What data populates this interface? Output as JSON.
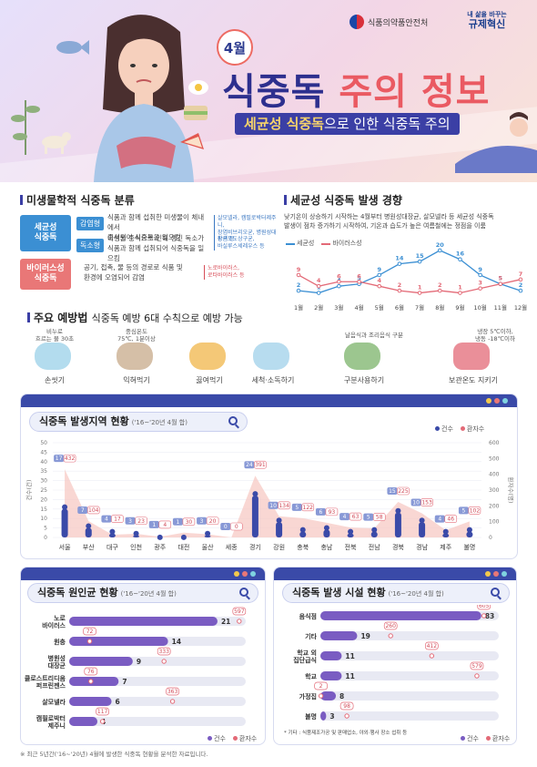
{
  "header": {
    "ministry": "식품의약품안전처",
    "slogan_small": "내 삶을 바꾸는",
    "slogan_big": "규제혁신",
    "month": "4월",
    "title_part1": "식중독",
    "title_part2": "주의 정보",
    "subtitle_hl": "세균성 식중독",
    "subtitle_rest": "으로 인한 식중독 주의"
  },
  "classification": {
    "title": "미생물학적 식중독 분류",
    "bacterial": {
      "label": "세균성\n식중독",
      "infect_tag": "감염형",
      "infect_text": "식품과 함께 섭취한 미생물이 체내에서\n증식되어 식중독을 일으킴",
      "infect_examples": "살모넬라, 캠필로박터제주니,\n장염비브리오균, 병원성대장균 등",
      "toxin_tag": "독소형",
      "toxin_text": "미생물 증식으로 인해 생긴 독소가\n식품과 함께 섭취되어 식중독을 일으킴",
      "toxin_examples": "황색포도상구균,\n바실루스세레우스 등"
    },
    "viral": {
      "label": "바이러스성\n식중독",
      "text": "공기, 접촉, 물 등의 경로로 식품 및\n환경에 오염되어 감염",
      "examples": "노로바이러스,\n로타바이러스 등"
    }
  },
  "trend": {
    "title": "세균성 식중독 발생 경향",
    "desc": "낮기온이 상승하기 시작하는 4월부터 병원성대장균, 살모넬라 등 세균성 식중독\n발생이 점차 증가하기 시작하여, 기온과 습도가 높은 여름철에는 정점을 이룸",
    "legend_bacterial": "세균성",
    "legend_viral": "바이러스성"
  },
  "trend_chart": {
    "type": "line",
    "x": [
      "1월",
      "2월",
      "3월",
      "4월",
      "5월",
      "6월",
      "7월",
      "8월",
      "9월",
      "10월",
      "11월",
      "12월"
    ],
    "series": [
      {
        "name": "세균성",
        "values": [
          2,
          1,
          4,
          5,
          9,
          14,
          15,
          20,
          16,
          9,
          5,
          2
        ],
        "color": "#3b8fd3"
      },
      {
        "name": "바이러스성",
        "values": [
          9,
          4,
          6,
          6,
          4,
          2,
          1,
          2,
          1,
          3,
          5,
          7
        ],
        "color": "#e36a77"
      }
    ]
  },
  "prevention": {
    "title": "주요 예방법",
    "subtitle": "식중독 예방 6대 수칙으로 예방 가능",
    "items": [
      {
        "label": "손씻기",
        "note": "비누로\n흐르는 물 30초"
      },
      {
        "label": "익혀먹기",
        "note": "중심온도\n75℃, 1분이상"
      },
      {
        "label": "끓여먹기",
        "note": ""
      },
      {
        "label": "세척·소독하기",
        "note": ""
      },
      {
        "label": "구분사용하기",
        "note": "날음식과 조리음식 구분"
      },
      {
        "label": "보관온도 지키기",
        "note": "냉장 5℃이하,\n냉동 -18℃이하"
      }
    ]
  },
  "region": {
    "title": "식중독 발생지역 현황",
    "note": "('16~'20년 4월 합)",
    "legend_cases": "건수",
    "legend_patients": "환자수",
    "left_axis": "건수(건)",
    "right_axis": "환자수(명)"
  },
  "region_chart": {
    "type": "bar",
    "categories": [
      "서울",
      "부산",
      "대구",
      "인천",
      "광주",
      "대전",
      "울산",
      "세종",
      "경기",
      "강원",
      "충북",
      "충남",
      "전북",
      "전남",
      "경북",
      "경남",
      "제주",
      "불명"
    ],
    "series": [
      {
        "name": "건수",
        "values": [
          17,
          7,
          4,
          3,
          1,
          1,
          3,
          0,
          24,
          10,
          5,
          6,
          4,
          5,
          15,
          10,
          4,
          5
        ]
      },
      {
        "name": "환자수",
        "values": [
          432,
          104,
          17,
          23,
          4,
          30,
          20,
          0,
          391,
          134,
          122,
          93,
          63,
          58,
          225,
          153,
          46,
          102
        ]
      }
    ],
    "ylim_left": [
      0,
      50
    ],
    "ylim_right": [
      0,
      600
    ],
    "ticks_left": [
      0,
      5,
      10,
      15,
      20,
      25,
      30,
      35,
      40,
      45,
      50
    ],
    "ticks_right": [
      0,
      100,
      200,
      300,
      400,
      500,
      600
    ]
  },
  "cause": {
    "title": "식중독 원인균 현황",
    "note": "('16~'20년 4월 합)",
    "legend_cases": "건수",
    "legend_patients": "환자수"
  },
  "cause_chart": {
    "type": "bar",
    "categories": [
      "노로\n바이러스",
      "원충",
      "병원성\n대장균",
      "클로스트리디움\n퍼프린젠스",
      "살모넬라",
      "캠필로박터\n제주니"
    ],
    "series": [
      {
        "name": "건수",
        "values": [
          21,
          14,
          9,
          7,
          6,
          4
        ]
      },
      {
        "name": "환자수",
        "values": [
          597,
          72,
          333,
          76,
          363,
          117
        ]
      }
    ]
  },
  "facility": {
    "title": "식중독 발생 시설 현황",
    "note": "('16~'20년 4월 합)",
    "footnote": "* 기타 : 식품제조가공 및 판매업소, 야외·행사 장소 섭취 등",
    "legend_cases": "건수",
    "legend_patients": "환자수"
  },
  "facility_chart": {
    "type": "bar",
    "categories": [
      "음식점",
      "기타",
      "학교 외\n집단급식",
      "학교",
      "가정집",
      "불명"
    ],
    "series": [
      {
        "name": "건수",
        "values": [
          83,
          19,
          11,
          11,
          8,
          3
        ]
      },
      {
        "name": "환자수",
        "values": [
          605,
          260,
          412,
          579,
          2,
          98
        ]
      }
    ]
  },
  "footnote": "※ 최근 5년간('16~'20년) 4월에 발생한 식중독 현황을 분석한 자료입니다."
}
